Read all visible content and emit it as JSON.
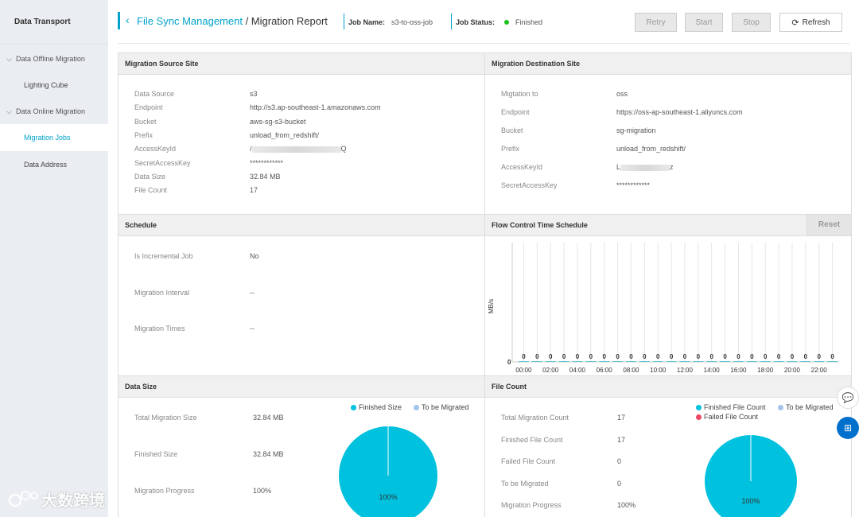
{
  "sidebar": {
    "title": "Data Transport",
    "groups": [
      {
        "label": "Data Offline Migration",
        "items": [
          "Lighting Cube"
        ]
      },
      {
        "label": "Data Online Migration",
        "items": [
          "Migration Jobs"
        ]
      }
    ],
    "standalone": "Data Address",
    "active": "Migration Jobs"
  },
  "watermark": "大数跨境",
  "header": {
    "back_link": "File Sync Management",
    "separator": " / ",
    "page": "Migration Report",
    "job_name_label": "Job Name:",
    "job_name_value": "s3-to-oss-job",
    "job_status_label": "Job Status:",
    "job_status_value": "Finished",
    "status_color": "#1dc11d",
    "buttons": {
      "retry": "Retry",
      "start": "Start",
      "stop": "Stop",
      "refresh": "Refresh"
    }
  },
  "source": {
    "title": "Migration Source Site",
    "rows": [
      {
        "key": "Data Source",
        "value": "s3"
      },
      {
        "key": "Endpoint",
        "value": "http://s3.ap-southeast-1.amazonaws.com"
      },
      {
        "key": "Bucket",
        "value": "aws-sg-s3-bucket"
      },
      {
        "key": "Prefix",
        "value": "unload_from_redshift/"
      },
      {
        "key": "AccessKeyId",
        "value": "/",
        "suffix": "Q"
      },
      {
        "key": "SecretAccessKey",
        "value": "************"
      },
      {
        "key": "Data Size",
        "value": "32.84 MB"
      },
      {
        "key": "File Count",
        "value": "17"
      }
    ]
  },
  "destination": {
    "title": "Migration Destination Site",
    "rows": [
      {
        "key": "Migtation to",
        "value": "oss"
      },
      {
        "key": "Endpoint",
        "value": "https://oss-ap-southeast-1.aliyuncs.com"
      },
      {
        "key": "Bucket",
        "value": "sg-migration"
      },
      {
        "key": "Prefix",
        "value": "unload_from_redshift/"
      },
      {
        "key": "AccessKeyId",
        "value": "L",
        "suffix": "z"
      },
      {
        "key": "SecretAccessKey",
        "value": "************"
      }
    ]
  },
  "schedule": {
    "title": "Schedule",
    "rows": [
      {
        "key": "Is Incremental Job",
        "value": "No"
      },
      {
        "key": "Migration Interval",
        "value": "--"
      },
      {
        "key": "Migration Times",
        "value": "--"
      }
    ]
  },
  "flow": {
    "title": "Flow Control Time Schedule",
    "reset": "Reset",
    "ylabel": "MB/s",
    "y_zero": "0",
    "hours": [
      "00:00",
      "02:00",
      "04:00",
      "06:00",
      "08:00",
      "10:00",
      "12:00",
      "14:00",
      "16:00",
      "18:00",
      "20:00",
      "22:00"
    ],
    "values": [
      0,
      0,
      0,
      0,
      0,
      0,
      0,
      0,
      0,
      0,
      0,
      0,
      0,
      0,
      0,
      0,
      0,
      0,
      0,
      0,
      0,
      0,
      0,
      0
    ],
    "bar_color": "#00c1de"
  },
  "datasize": {
    "title": "Data Size",
    "rows": [
      {
        "key": "Total Migration Size",
        "value": "32.84 MB"
      },
      {
        "key": "Finished Size",
        "value": "32.84 MB"
      },
      {
        "key": "Migration Progress",
        "value": "100%"
      }
    ],
    "legend": [
      "Finished Size",
      "To be Migrated"
    ],
    "pie_label": "100%"
  },
  "filecount": {
    "title": "File Count",
    "rows": [
      {
        "key": "Total Migration Count",
        "value": "17"
      },
      {
        "key": "Finished File Count",
        "value": "17"
      },
      {
        "key": "Failed File Count",
        "value": "0"
      },
      {
        "key": "To be Migrated",
        "value": "0"
      },
      {
        "key": "Migration Progress",
        "value": "100%"
      }
    ],
    "legend": [
      "Finished File Count",
      "To be Migrated",
      "Failed File Count"
    ],
    "pie_label": "100%"
  },
  "colors": {
    "accent": "#00a2ca",
    "finished": "#00c1de",
    "to_be_migrated": "#a3c4e8",
    "failed": "#f04864"
  }
}
